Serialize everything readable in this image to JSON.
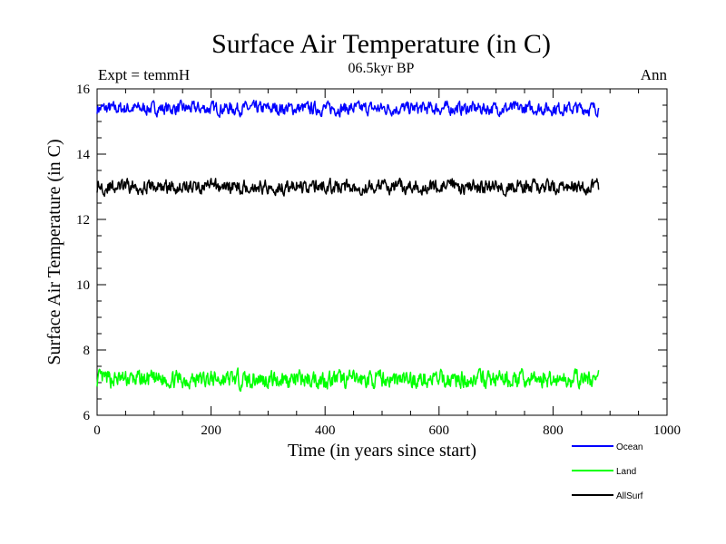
{
  "chart_data": {
    "type": "line",
    "title": "Surface Air Temperature (in C)",
    "subtitle": "06.5kyr BP",
    "experiment_label": "Expt = temmH",
    "season_label": "Ann",
    "xlabel": "Time (in years since start)",
    "ylabel": "Surface Air Temperature (in C)",
    "xlim": [
      0,
      1000
    ],
    "ylim": [
      6,
      16
    ],
    "x_ticks": [
      0,
      200,
      400,
      600,
      800,
      1000
    ],
    "y_ticks": [
      6,
      8,
      10,
      12,
      14,
      16
    ],
    "x_range_of_data": [
      0,
      880
    ],
    "legend_position": "bottom-right",
    "series": [
      {
        "name": "Ocean",
        "color": "#0000ff",
        "mean": 15.4,
        "approx_min": 15.1,
        "approx_max": 15.7
      },
      {
        "name": "Land",
        "color": "#00ff00",
        "mean": 7.1,
        "approx_min": 6.7,
        "approx_max": 7.5
      },
      {
        "name": "AllSurf",
        "color": "#000000",
        "mean": 13.0,
        "approx_min": 12.7,
        "approx_max": 13.35
      }
    ]
  }
}
